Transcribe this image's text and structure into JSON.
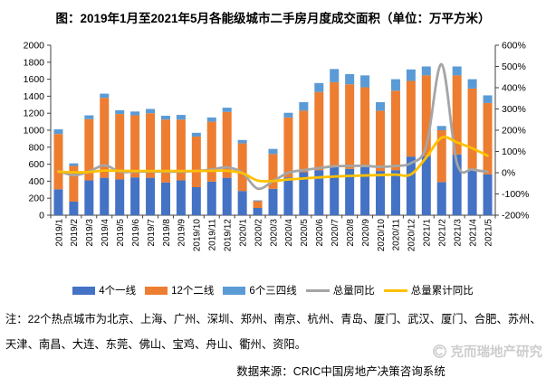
{
  "title": "图：2019年1月至2021年5月各能级城市二手房月度成交面积（单位：万平方米）",
  "note": "注：22个热点城市为北京、上海、广州、深圳、郑州、南京、杭州、青岛、厦门、武汉、厦门、合肥、苏州、天津、南昌、大连、东莞、佛山、宝鸡、舟山、衢州、资阳。",
  "source": "数据来源：CRIC中国房地产决策咨询系统",
  "watermark": "克而瑞地产研究",
  "colors": {
    "tier1_blue": "#4472C4",
    "tier2_orange": "#ED7D31",
    "tier34_lightblue": "#5B9BD5",
    "yoy_gray": "#A5A5A5",
    "cum_yoy_yellow": "#FFC000",
    "axis": "#404040",
    "watermark_gray": "#cdcdcd"
  },
  "chart_data": {
    "type": "bar",
    "subtype": "stacked-bars-with-smooth-lines-dual-axis",
    "categories": [
      "2019/1",
      "2019/2",
      "2019/3",
      "2019/4",
      "2019/5",
      "2019/6",
      "2019/7",
      "2019/8",
      "2019/9",
      "2019/10",
      "2019/11",
      "2019/12",
      "2020/1",
      "2020/2",
      "2020/3",
      "2020/4",
      "2020/5",
      "2020/6",
      "2020/7",
      "2020/8",
      "2020/9",
      "2020/10",
      "2020/11",
      "2020/12",
      "2021/1",
      "2021/2",
      "2021/3",
      "2021/4",
      "2021/5"
    ],
    "series": [
      {
        "name": "4个一线",
        "type": "bar",
        "axis": "left",
        "color": "#4472C4",
        "values": [
          305,
          160,
          410,
          440,
          420,
          445,
          440,
          385,
          410,
          330,
          395,
          440,
          285,
          85,
          310,
          445,
          505,
          530,
          565,
          545,
          565,
          520,
          530,
          690,
          695,
          390,
          715,
          545,
          480
        ]
      },
      {
        "name": "12个二线",
        "type": "bar",
        "axis": "left",
        "color": "#ED7D31",
        "values": [
          650,
          420,
          720,
          940,
          770,
          730,
          760,
          740,
          715,
          595,
          705,
          775,
          560,
          80,
          410,
          705,
          725,
          920,
          1000,
          995,
          940,
          710,
          935,
          890,
          950,
          610,
          930,
          945,
          840
        ]
      },
      {
        "name": "6个三四线",
        "type": "bar",
        "axis": "left",
        "color": "#5B9BD5",
        "values": [
          55,
          30,
          45,
          50,
          45,
          45,
          50,
          45,
          55,
          45,
          50,
          50,
          40,
          10,
          60,
          55,
          100,
          105,
          155,
          120,
          140,
          100,
          135,
          135,
          105,
          50,
          105,
          110,
          90
        ]
      },
      {
        "name": "总量同比",
        "type": "line",
        "axis": "right",
        "unit": "percent",
        "color": "#A5A5A5",
        "values": [
          8,
          -12,
          5,
          35,
          5,
          5,
          6,
          5,
          5,
          8,
          15,
          25,
          0,
          -75,
          -40,
          0,
          12,
          22,
          30,
          32,
          32,
          28,
          32,
          45,
          125,
          510,
          45,
          15,
          5
        ]
      },
      {
        "name": "总量累计同比",
        "type": "line",
        "axis": "right",
        "unit": "percent",
        "color": "#FFC000",
        "values": [
          5,
          2,
          3,
          10,
          9,
          8,
          8,
          8,
          8,
          8,
          9,
          9,
          -2,
          -37,
          -39,
          -32,
          -27,
          -22,
          -18,
          -15,
          -13,
          -11,
          -9,
          -8,
          72,
          165,
          143,
          115,
          80
        ]
      }
    ],
    "left_axis": {
      "min": 0,
      "max": 2000,
      "step": 200,
      "ticks": [
        "0",
        "200",
        "400",
        "600",
        "800",
        "1000",
        "1200",
        "1400",
        "1600",
        "1800",
        "2000"
      ]
    },
    "right_axis": {
      "min": -200,
      "max": 600,
      "step": 100,
      "format": "percent",
      "ticks": [
        "-200%",
        "-100%",
        "0%",
        "100%",
        "200%",
        "300%",
        "400%",
        "500%",
        "600%"
      ]
    },
    "grid": false,
    "legend_position": "bottom"
  }
}
